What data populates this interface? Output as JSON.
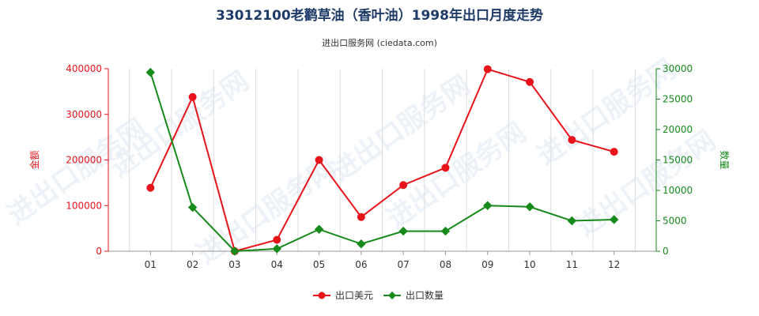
{
  "chart_data": {
    "type": "line",
    "title": "33012100老鹳草油（香叶油）1998年出口月度走势",
    "subtitle": "进出口服务网 (ciedata.com)",
    "categories": [
      "01",
      "02",
      "03",
      "04",
      "05",
      "06",
      "07",
      "08",
      "09",
      "10",
      "11",
      "12"
    ],
    "left_axis": {
      "label": "金额",
      "ylim": [
        0,
        400000
      ],
      "ticks": [
        0,
        100000,
        200000,
        300000,
        400000
      ],
      "color": "#e8141b"
    },
    "right_axis": {
      "label": "数量",
      "ylim": [
        0,
        30000
      ],
      "ticks": [
        0,
        5000,
        10000,
        15000,
        20000,
        25000,
        30000
      ],
      "color": "#168a1a"
    },
    "series": [
      {
        "name": "出口美元",
        "axis": "left",
        "color": "#e8141b",
        "values": [
          139000,
          338000,
          0,
          25000,
          200000,
          75000,
          145000,
          183000,
          399000,
          371000,
          244000,
          218000
        ]
      },
      {
        "name": "出口数量",
        "axis": "right",
        "color": "#168a1a",
        "values": [
          29400,
          7200,
          0,
          400,
          3600,
          1200,
          3300,
          3300,
          7500,
          7300,
          5000,
          5200
        ]
      }
    ],
    "grid": "vertical",
    "legend_position": "bottom-center"
  },
  "watermark_text": "进出口服务网"
}
